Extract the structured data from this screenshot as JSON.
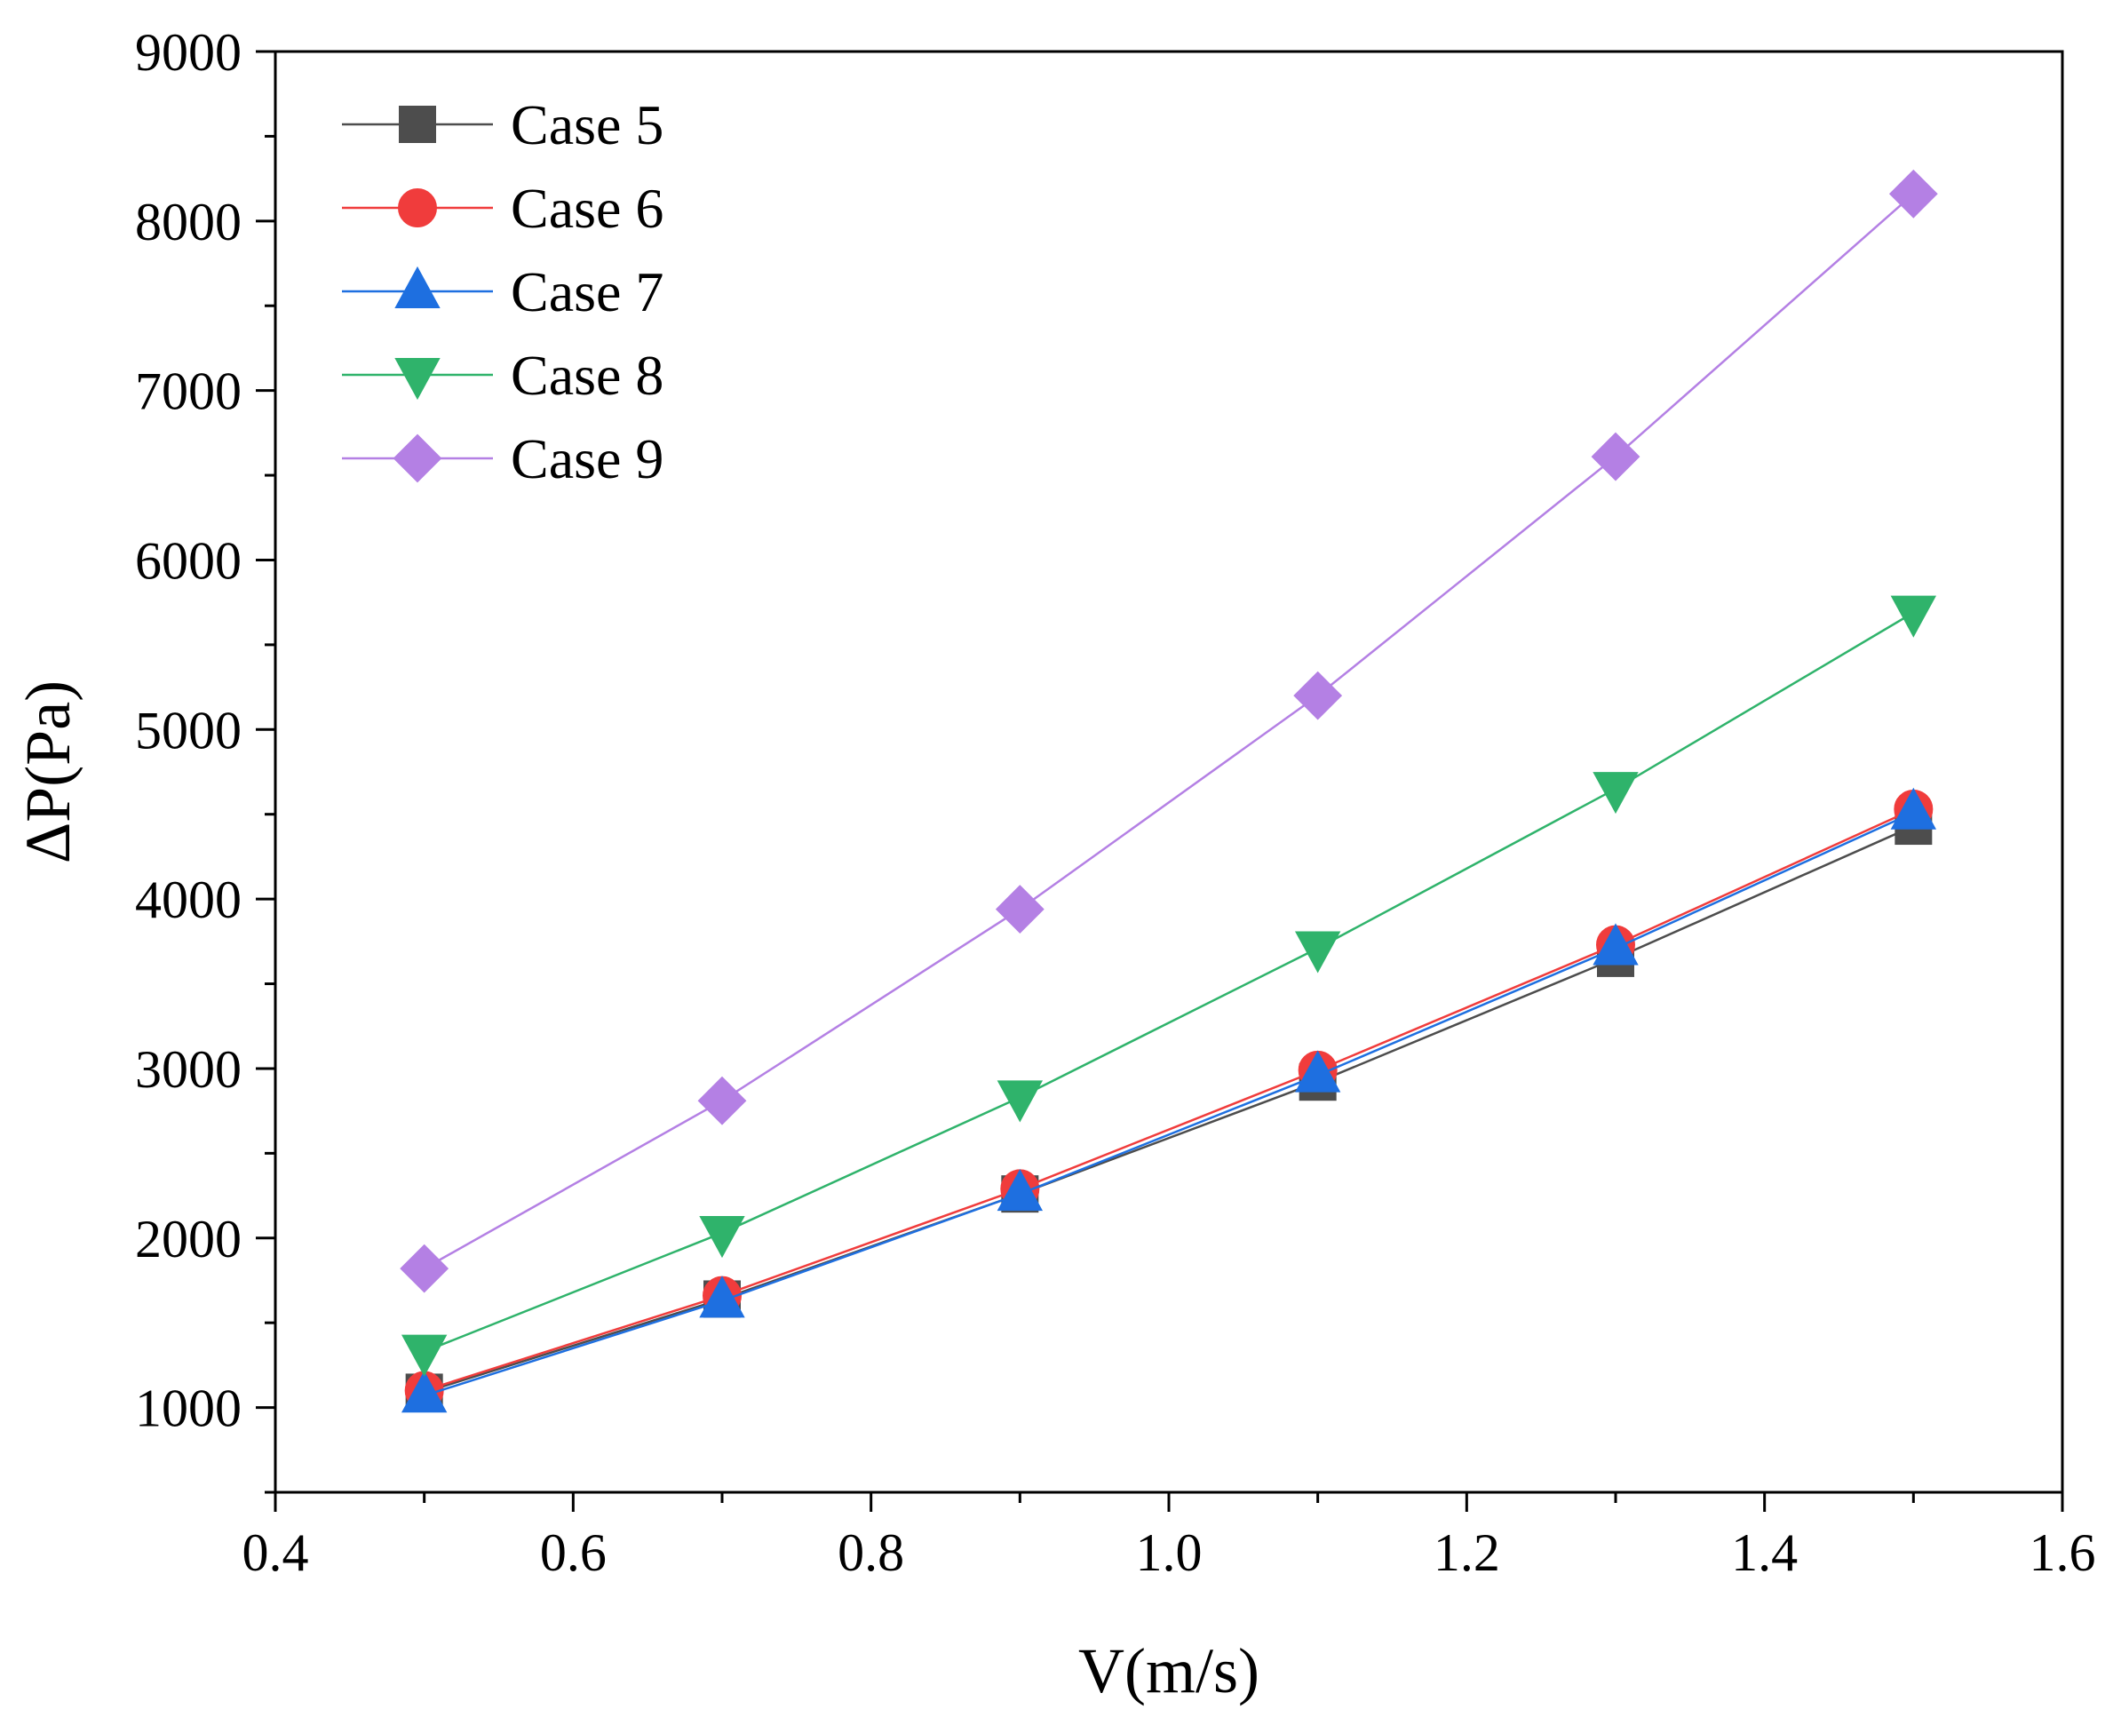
{
  "chart_data": {
    "type": "line",
    "title": "",
    "xlabel": "V(m/s)",
    "ylabel": "ΔP(Pa)",
    "xlim": [
      0.4,
      1.6
    ],
    "ylim": [
      500,
      9000
    ],
    "x_ticks": [
      0.4,
      0.6,
      0.8,
      1.0,
      1.2,
      1.4,
      1.6
    ],
    "x_tick_labels": [
      "0.4",
      "0.6",
      "0.8",
      "1.0",
      "1.2",
      "1.4",
      "1.6"
    ],
    "y_ticks": [
      1000,
      2000,
      3000,
      4000,
      5000,
      6000,
      7000,
      8000,
      9000
    ],
    "y_tick_labels": [
      "1000",
      "2000",
      "3000",
      "4000",
      "5000",
      "6000",
      "7000",
      "8000",
      "9000"
    ],
    "grid": false,
    "legend_position": "top-left",
    "x": [
      0.5,
      0.7,
      0.9,
      1.1,
      1.3,
      1.5
    ],
    "series": [
      {
        "name": "Case 5",
        "color": "#4d4d4d",
        "marker": "square",
        "values": [
          1090,
          1640,
          2260,
          2920,
          3650,
          4430
        ]
      },
      {
        "name": "Case 6",
        "color": "#f03c3c",
        "marker": "circle",
        "values": [
          1100,
          1660,
          2290,
          2990,
          3730,
          4530
        ]
      },
      {
        "name": "Case 7",
        "color": "#1e6fe0",
        "marker": "triangle-up",
        "values": [
          1070,
          1630,
          2260,
          2960,
          3710,
          4510
        ]
      },
      {
        "name": "Case 8",
        "color": "#2fb36b",
        "marker": "triangle-down",
        "values": [
          1330,
          2030,
          2830,
          3710,
          4650,
          5690
        ]
      },
      {
        "name": "Case 9",
        "color": "#b480e4",
        "marker": "diamond",
        "values": [
          1820,
          2810,
          3940,
          5200,
          6610,
          8160
        ]
      }
    ]
  }
}
